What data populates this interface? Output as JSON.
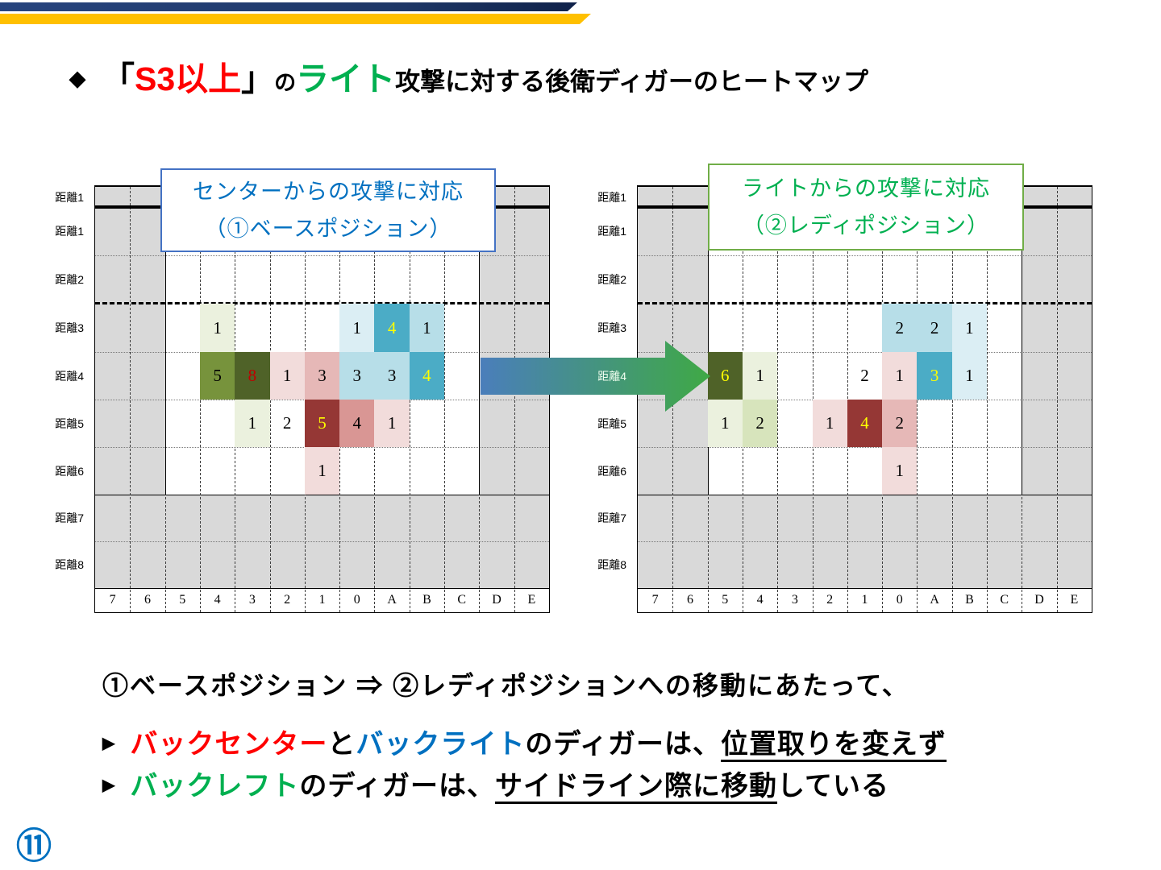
{
  "header": {
    "bar_gold_color": "#FFC000",
    "bar_blue_color": "#1F3864"
  },
  "title": {
    "diamond": "◆",
    "bracket_open": "「",
    "s3": "S3以上",
    "s3_color": "#FF0000",
    "bracket_close": "」",
    "particle": "の",
    "right": "ライト",
    "right_color": "#00B050",
    "attack": "攻撃",
    "rest": "に対する後衛ディガーのヒートマップ"
  },
  "charts": [
    {
      "label_box": {
        "line1": "センターからの攻撃に対応",
        "line2": "（①ベースポジション）",
        "text_color": "#0070C0",
        "border_color": "#4472C4"
      },
      "row_labels": [
        "距離1",
        "距離1",
        "距離2",
        "距離3",
        "距離4",
        "距離5",
        "距離6",
        "距離7",
        "距離8"
      ],
      "col_labels": [
        "7",
        "6",
        "5",
        "4",
        "3",
        "2",
        "1",
        "0",
        "A",
        "B",
        "C",
        "D",
        "E"
      ],
      "cells": [
        {
          "row": 3,
          "col": 3,
          "value": "1",
          "bg": "#EBF1DE",
          "fg": "#000000"
        },
        {
          "row": 3,
          "col": 7,
          "value": "1",
          "bg": "#DBEEF4",
          "fg": "#000000"
        },
        {
          "row": 3,
          "col": 8,
          "value": "4",
          "bg": "#4BACC6",
          "fg": "#FFFF00"
        },
        {
          "row": 3,
          "col": 9,
          "value": "1",
          "bg": "#B7DEE8",
          "fg": "#000000"
        },
        {
          "row": 4,
          "col": 3,
          "value": "5",
          "bg": "#77933C",
          "fg": "#000000"
        },
        {
          "row": 4,
          "col": 4,
          "value": "8",
          "bg": "#4F6228",
          "fg": "#C00000"
        },
        {
          "row": 4,
          "col": 5,
          "value": "1",
          "bg": "#F2DCDB",
          "fg": "#000000"
        },
        {
          "row": 4,
          "col": 6,
          "value": "3",
          "bg": "#E6B8B7",
          "fg": "#000000"
        },
        {
          "row": 4,
          "col": 7,
          "value": "3",
          "bg": "#B7DEE8",
          "fg": "#000000"
        },
        {
          "row": 4,
          "col": 8,
          "value": "3",
          "bg": "#B7DEE8",
          "fg": "#000000"
        },
        {
          "row": 4,
          "col": 9,
          "value": "4",
          "bg": "#4BACC6",
          "fg": "#FFFF00"
        },
        {
          "row": 5,
          "col": 4,
          "value": "1",
          "bg": "#EBF1DE",
          "fg": "#000000"
        },
        {
          "row": 5,
          "col": 5,
          "value": "2",
          "bg": "none",
          "fg": "#000000"
        },
        {
          "row": 5,
          "col": 6,
          "value": "5",
          "bg": "#953735",
          "fg": "#FFFF00"
        },
        {
          "row": 5,
          "col": 7,
          "value": "4",
          "bg": "#D99694",
          "fg": "#000000"
        },
        {
          "row": 5,
          "col": 8,
          "value": "1",
          "bg": "#F2DCDB",
          "fg": "#000000"
        },
        {
          "row": 6,
          "col": 6,
          "value": "1",
          "bg": "#F2DCDB",
          "fg": "#000000"
        }
      ]
    },
    {
      "label_box": {
        "line1": "ライトからの攻撃に対応",
        "line2": "（②レディポジション）",
        "text_color": "#00B050",
        "border_color": "#70AD47"
      },
      "row_labels": [
        "距離1",
        "距離1",
        "距離2",
        "距離3",
        "距離4",
        "距離5",
        "距離6",
        "距離7",
        "距離8"
      ],
      "col_labels": [
        "7",
        "6",
        "5",
        "4",
        "3",
        "2",
        "1",
        "0",
        "A",
        "B",
        "C",
        "D",
        "E"
      ],
      "cells": [
        {
          "row": 3,
          "col": 7,
          "value": "2",
          "bg": "#B7DEE8",
          "fg": "#000000"
        },
        {
          "row": 3,
          "col": 8,
          "value": "2",
          "bg": "#B7DEE8",
          "fg": "#000000"
        },
        {
          "row": 3,
          "col": 9,
          "value": "1",
          "bg": "#DBEEF4",
          "fg": "#000000"
        },
        {
          "row": 4,
          "col": 2,
          "value": "6",
          "bg": "#4F6228",
          "fg": "#FFFF00"
        },
        {
          "row": 4,
          "col": 3,
          "value": "1",
          "bg": "#EBF1DE",
          "fg": "#000000"
        },
        {
          "row": 4,
          "col": 6,
          "value": "2",
          "bg": "none",
          "fg": "#000000"
        },
        {
          "row": 4,
          "col": 7,
          "value": "1",
          "bg": "#F2DCDB",
          "fg": "#000000"
        },
        {
          "row": 4,
          "col": 8,
          "value": "3",
          "bg": "#4BACC6",
          "fg": "#FFFF00"
        },
        {
          "row": 4,
          "col": 9,
          "value": "1",
          "bg": "#DBEEF4",
          "fg": "#000000"
        },
        {
          "row": 5,
          "col": 2,
          "value": "1",
          "bg": "#EBF1DE",
          "fg": "#000000"
        },
        {
          "row": 5,
          "col": 3,
          "value": "2",
          "bg": "#D7E4BC",
          "fg": "#000000"
        },
        {
          "row": 5,
          "col": 5,
          "value": "1",
          "bg": "#F2DCDB",
          "fg": "#000000"
        },
        {
          "row": 5,
          "col": 6,
          "value": "4",
          "bg": "#953735",
          "fg": "#FFFF00"
        },
        {
          "row": 5,
          "col": 7,
          "value": "2",
          "bg": "#E6B8B7",
          "fg": "#000000"
        },
        {
          "row": 6,
          "col": 7,
          "value": "1",
          "bg": "#F2DCDB",
          "fg": "#000000"
        }
      ]
    }
  ],
  "chart_data": [
    {
      "type": "heatmap",
      "title": "センターからの攻撃に対応（①ベースポジション）",
      "columns": [
        "7",
        "6",
        "5",
        "4",
        "3",
        "2",
        "1",
        "0",
        "A",
        "B",
        "C",
        "D",
        "E"
      ],
      "rows": [
        "距離1",
        "距離1",
        "距離2",
        "距離3",
        "距離4",
        "距離5",
        "距離6",
        "距離7",
        "距離8"
      ],
      "points": [
        {
          "r": "距離3",
          "c": "4",
          "v": 1
        },
        {
          "r": "距離3",
          "c": "0",
          "v": 1
        },
        {
          "r": "距離3",
          "c": "A",
          "v": 4
        },
        {
          "r": "距離3",
          "c": "B",
          "v": 1
        },
        {
          "r": "距離4",
          "c": "4",
          "v": 5
        },
        {
          "r": "距離4",
          "c": "3",
          "v": 8
        },
        {
          "r": "距離4",
          "c": "2",
          "v": 1
        },
        {
          "r": "距離4",
          "c": "1",
          "v": 3
        },
        {
          "r": "距離4",
          "c": "0",
          "v": 3
        },
        {
          "r": "距離4",
          "c": "A",
          "v": 3
        },
        {
          "r": "距離4",
          "c": "B",
          "v": 4
        },
        {
          "r": "距離5",
          "c": "3",
          "v": 1
        },
        {
          "r": "距離5",
          "c": "2",
          "v": 2
        },
        {
          "r": "距離5",
          "c": "1",
          "v": 5
        },
        {
          "r": "距離5",
          "c": "0",
          "v": 4
        },
        {
          "r": "距離5",
          "c": "A",
          "v": 1
        },
        {
          "r": "距離6",
          "c": "1",
          "v": 1
        }
      ]
    },
    {
      "type": "heatmap",
      "title": "ライトからの攻撃に対応（②レディポジション）",
      "columns": [
        "7",
        "6",
        "5",
        "4",
        "3",
        "2",
        "1",
        "0",
        "A",
        "B",
        "C",
        "D",
        "E"
      ],
      "rows": [
        "距離1",
        "距離1",
        "距離2",
        "距離3",
        "距離4",
        "距離5",
        "距離6",
        "距離7",
        "距離8"
      ],
      "points": [
        {
          "r": "距離3",
          "c": "0",
          "v": 2
        },
        {
          "r": "距離3",
          "c": "A",
          "v": 2
        },
        {
          "r": "距離3",
          "c": "B",
          "v": 1
        },
        {
          "r": "距離4",
          "c": "5",
          "v": 6
        },
        {
          "r": "距離4",
          "c": "4",
          "v": 1
        },
        {
          "r": "距離4",
          "c": "1",
          "v": 2
        },
        {
          "r": "距離4",
          "c": "0",
          "v": 1
        },
        {
          "r": "距離4",
          "c": "A",
          "v": 3
        },
        {
          "r": "距離4",
          "c": "B",
          "v": 1
        },
        {
          "r": "距離5",
          "c": "5",
          "v": 1
        },
        {
          "r": "距離5",
          "c": "4",
          "v": 2
        },
        {
          "r": "距離5",
          "c": "2",
          "v": 1
        },
        {
          "r": "距離5",
          "c": "1",
          "v": 4
        },
        {
          "r": "距離5",
          "c": "0",
          "v": 2
        },
        {
          "r": "距離6",
          "c": "0",
          "v": 1
        }
      ]
    }
  ],
  "arrow": {
    "from_color": "#4A7EBB",
    "to_color": "#3FA945"
  },
  "notes": {
    "line1": "①ベースポジション ⇒ ②レディポジションへの移動にあたって、",
    "line2": {
      "marker": "▶",
      "seg1": "バックセンター",
      "seg1_color": "#FF0000",
      "seg2": "と",
      "seg3": "バックライト",
      "seg3_color": "#0070C0",
      "seg4": "のディガーは、",
      "seg5": "位置取りを変えず"
    },
    "line3": {
      "marker": "▶",
      "seg1": "バックレフト",
      "seg1_color": "#00B050",
      "seg2": "のディガーは、",
      "seg3": "サイドライン際に移動",
      "seg4": "している"
    }
  },
  "page_number": "⑪",
  "page_number_color": "#0070C0"
}
